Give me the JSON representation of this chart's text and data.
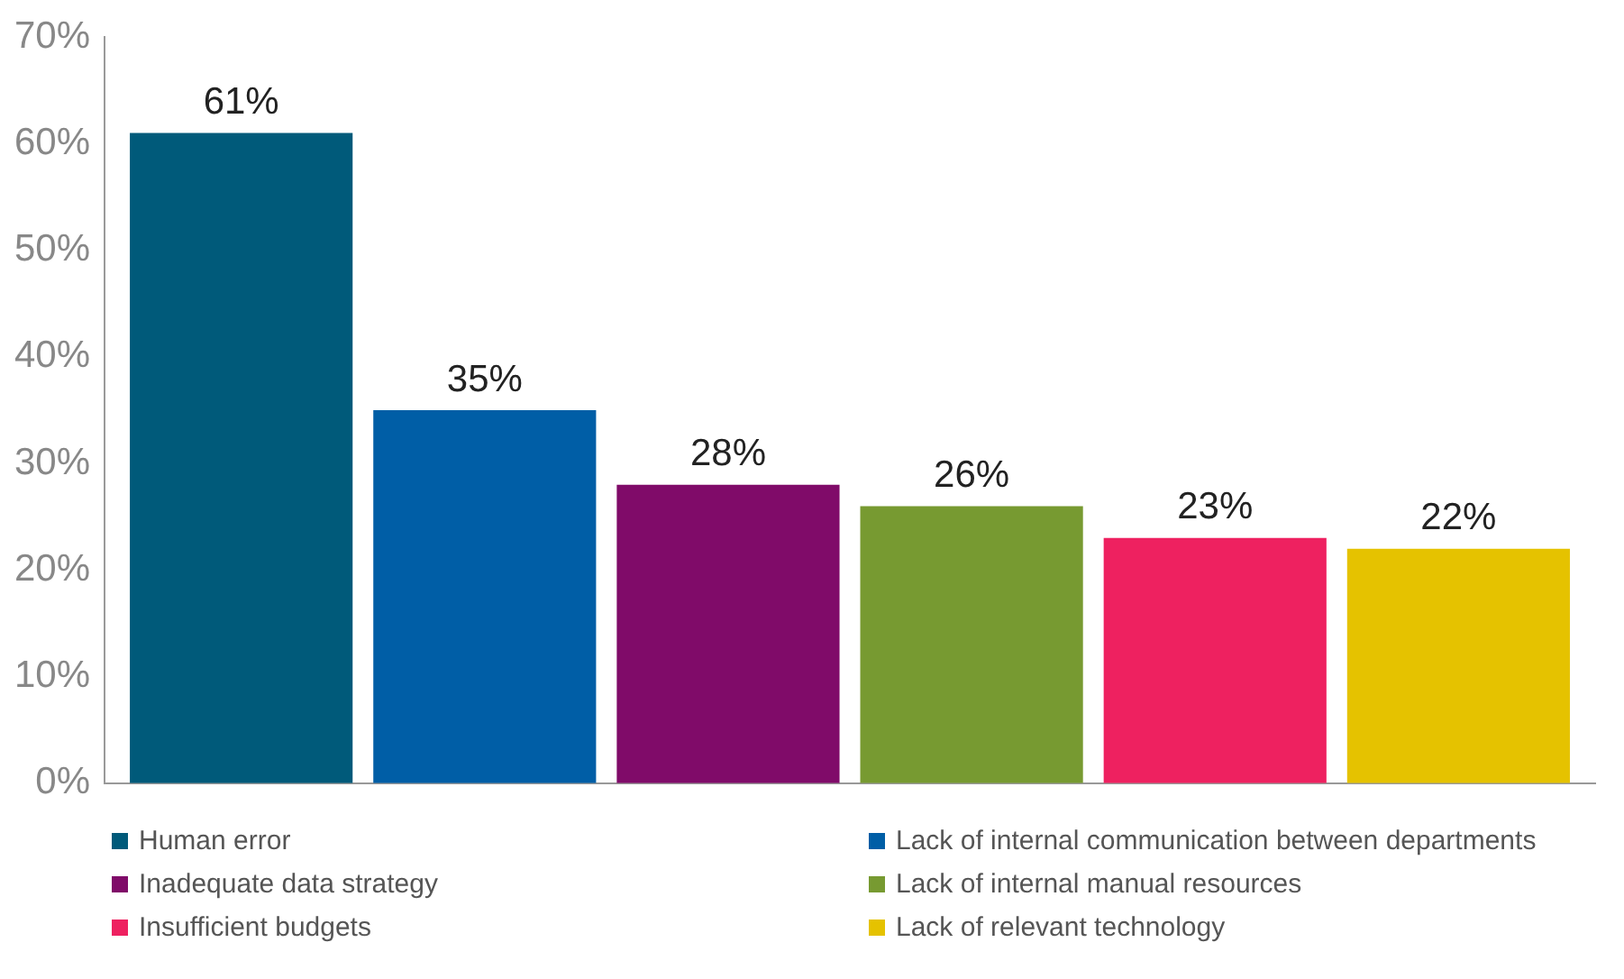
{
  "chart_data": {
    "type": "bar",
    "categories": [
      null
    ],
    "series": [
      {
        "name": "Human error",
        "color": "#005a7a",
        "values": [
          61
        ],
        "value_labels": [
          "61%"
        ]
      },
      {
        "name": "Lack of internal communication between departments",
        "color": "#005ea6",
        "values": [
          35
        ],
        "value_labels": [
          "35%"
        ]
      },
      {
        "name": "Inadequate data strategy",
        "color": "#800b69",
        "values": [
          28
        ],
        "value_labels": [
          "28%"
        ]
      },
      {
        "name": "Lack of internal manual resources",
        "color": "#779a31",
        "values": [
          26
        ],
        "value_labels": [
          "26%"
        ]
      },
      {
        "name": "Insufficient budgets",
        "color": "#ee2160",
        "values": [
          23
        ],
        "value_labels": [
          "23%"
        ]
      },
      {
        "name": "Lack of relevant technology",
        "color": "#e5c200",
        "values": [
          22
        ],
        "value_labels": [
          "22%"
        ]
      }
    ],
    "ylim": [
      0,
      70
    ],
    "yticks": [
      {
        "value": 0,
        "label": "0%"
      },
      {
        "value": 10,
        "label": "10%"
      },
      {
        "value": 20,
        "label": "20%"
      },
      {
        "value": 30,
        "label": "30%"
      },
      {
        "value": 40,
        "label": "40%"
      },
      {
        "value": 50,
        "label": "50%"
      },
      {
        "value": 60,
        "label": "60%"
      },
      {
        "value": 70,
        "label": "70%"
      }
    ],
    "grid": false,
    "legend": "bottom"
  }
}
